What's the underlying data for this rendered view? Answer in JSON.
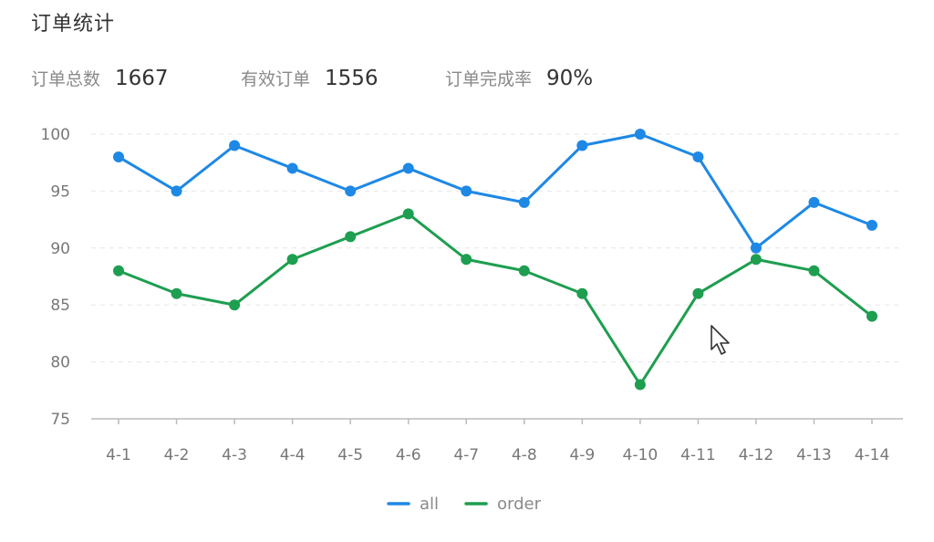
{
  "header": {
    "title": "订单统计"
  },
  "stats": [
    {
      "label": "订单总数",
      "value": "1667"
    },
    {
      "label": "有效订单",
      "value": "1556"
    },
    {
      "label": "订单完成率",
      "value": "90%"
    }
  ],
  "chart_data": {
    "type": "line",
    "title": "订单统计",
    "xlabel": "",
    "ylabel": "",
    "categories": [
      "4-1",
      "4-2",
      "4-3",
      "4-4",
      "4-5",
      "4-6",
      "4-7",
      "4-8",
      "4-9",
      "4-10",
      "4-11",
      "4-12",
      "4-13",
      "4-14"
    ],
    "ylim": [
      75,
      100
    ],
    "yticks": [
      75,
      80,
      85,
      90,
      95,
      100
    ],
    "grid": true,
    "legend": "bottom-center",
    "series": [
      {
        "name": "all",
        "color": "#1e88e5",
        "values": [
          98,
          95,
          99,
          97,
          95,
          97,
          95,
          94,
          99,
          100,
          98,
          90,
          94,
          92
        ]
      },
      {
        "name": "order",
        "color": "#1e9e50",
        "values": [
          88,
          86,
          85,
          89,
          91,
          93,
          89,
          88,
          86,
          78,
          86,
          89,
          88,
          84
        ]
      }
    ]
  }
}
